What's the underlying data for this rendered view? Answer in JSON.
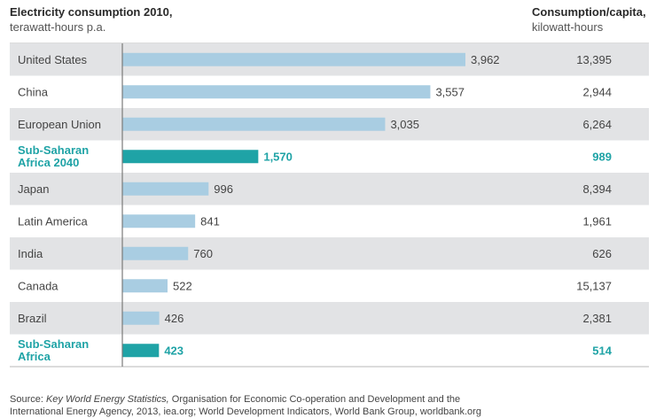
{
  "header": {
    "left_title": "Electricity consumption 2010,",
    "left_subtitle": "terawatt-hours p.a.",
    "right_title": "Consumption/capita,",
    "right_subtitle": "kilowatt-hours"
  },
  "source": {
    "prefix": "Source: ",
    "title": "Key World Energy Statistics,",
    "text1": " Organisation for Economic Co-operation and Development and the",
    "text2": "International Energy Agency, 2013, iea.org; World Development Indicators, World Bank Group, worldbank.org"
  },
  "colors": {
    "bar": "#a9cde2",
    "highlight": "#1fa3a6",
    "band": "#e2e3e5",
    "axis": "#7a7a7a",
    "text": "#444444"
  },
  "chart_data": {
    "type": "bar",
    "orientation": "horizontal",
    "xlim": [
      0,
      4400
    ],
    "categories": [
      "United States",
      "China",
      "European Union",
      "Sub-Saharan Africa 2040",
      "Japan",
      "Latin America",
      "India",
      "Canada",
      "Brazil",
      "Sub-Saharan Africa"
    ],
    "category_lines": [
      [
        "United States"
      ],
      [
        "China"
      ],
      [
        "European Union"
      ],
      [
        "Sub-Saharan",
        "Africa 2040"
      ],
      [
        "Japan"
      ],
      [
        "Latin America"
      ],
      [
        "India"
      ],
      [
        "Canada"
      ],
      [
        "Brazil"
      ],
      [
        "Sub-Saharan",
        "Africa"
      ]
    ],
    "values": [
      3962,
      3557,
      3035,
      1570,
      996,
      841,
      760,
      522,
      426,
      423
    ],
    "value_labels": [
      "3,962",
      "3,557",
      "3,035",
      "1,570",
      "996",
      "841",
      "760",
      "522",
      "426",
      "423"
    ],
    "per_capita_labels": [
      "13,395",
      "2,944",
      "6,264",
      "989",
      "8,394",
      "1,961",
      "626",
      "15,137",
      "2,381",
      "514"
    ],
    "highlighted": [
      false,
      false,
      false,
      true,
      false,
      false,
      false,
      false,
      false,
      true
    ]
  }
}
